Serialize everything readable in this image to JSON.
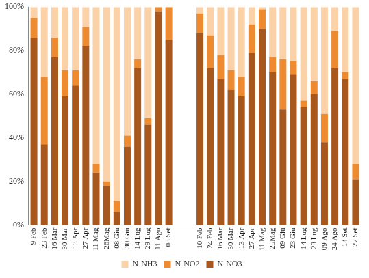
{
  "chart_data": {
    "type": "bar",
    "stacked": true,
    "grid": false,
    "legend": "bottom",
    "categories": [
      "9 Feb",
      "23 Feb",
      "16 Mar",
      "30 Mar",
      "13 Apr",
      "27 Apr",
      "11 Mag",
      "26Mag",
      "08 Giu",
      "30 Giu",
      "14 Lug",
      "29 Lug",
      "11 Ago",
      "08 Set",
      null,
      null,
      "10 Feb",
      "24 Feb",
      "16 Mar",
      "30 Mar",
      "13 Apr",
      "27 Apr",
      "11 Mag",
      "25Mag",
      "09 Giu",
      "23 Giu",
      "14 Lug",
      "28 Lug",
      "09 Ago",
      "24 Ago",
      "14 Set",
      "27 Set"
    ],
    "series": [
      {
        "name": "N-NH3",
        "color": "#fbd1a8",
        "values": [
          5,
          32,
          14,
          29,
          29,
          9,
          72,
          80,
          89,
          59,
          24,
          51,
          0,
          0,
          null,
          null,
          3,
          13,
          22,
          29,
          32,
          8,
          1,
          23,
          24,
          25,
          43,
          34,
          49,
          11,
          30,
          72
        ]
      },
      {
        "name": "N-NO2",
        "color": "#ee8a30",
        "values": [
          9,
          31,
          9,
          12,
          7,
          9,
          4,
          2,
          5,
          5,
          4,
          3,
          2,
          15,
          null,
          null,
          9,
          15,
          11,
          9,
          9,
          13,
          9,
          7,
          23,
          6,
          3,
          6,
          13,
          17,
          3,
          7
        ]
      },
      {
        "name": "N-NO3",
        "color": "#a8581d",
        "values": [
          86,
          37,
          77,
          59,
          64,
          82,
          24,
          18,
          6,
          36,
          72,
          46,
          98,
          85,
          null,
          null,
          88,
          72,
          67,
          62,
          59,
          79,
          90,
          70,
          53,
          69,
          54,
          60,
          38,
          72,
          67,
          21
        ]
      }
    ],
    "ylim": [
      0,
      100
    ],
    "yticks": [
      {
        "value": 0,
        "label": "0%"
      },
      {
        "value": 20,
        "label": "20%"
      },
      {
        "value": 40,
        "label": "40%"
      },
      {
        "value": 60,
        "label": "60%"
      },
      {
        "value": 80,
        "label": "80%"
      },
      {
        "value": 100,
        "label": "100%"
      }
    ]
  }
}
